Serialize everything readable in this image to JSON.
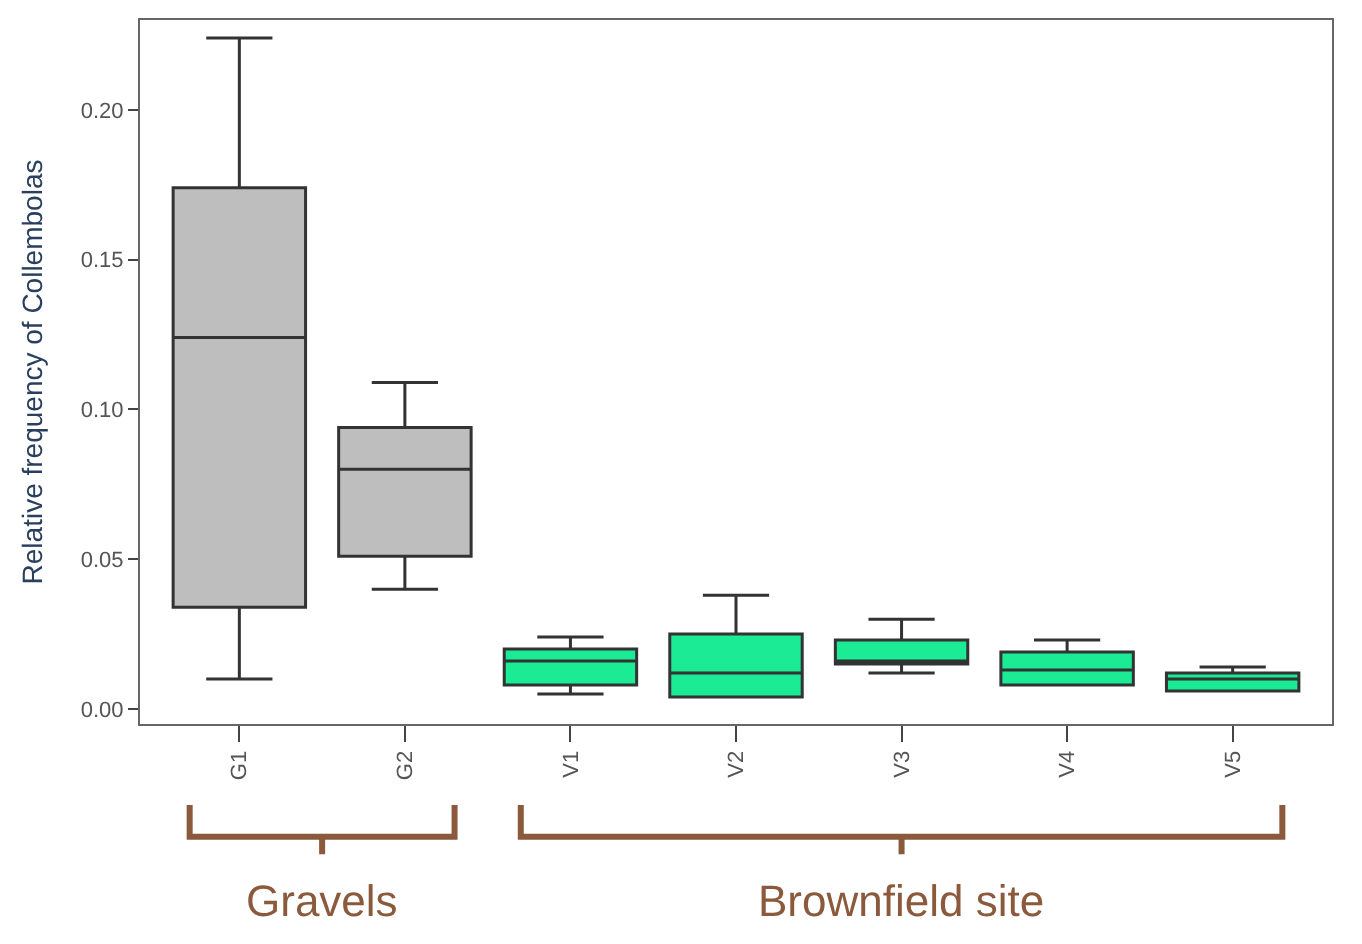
{
  "chart_data": {
    "type": "box",
    "ylabel": "Relative frequency of Collembolas",
    "categories": [
      "G1",
      "G2",
      "V1",
      "V2",
      "V3",
      "V4",
      "V5"
    ],
    "colors": [
      "#bebebe",
      "#bebebe",
      "#1aeb94",
      "#1aeb94",
      "#1aeb94",
      "#1aeb94",
      "#1aeb94"
    ],
    "boxes": [
      {
        "low": 0.01,
        "q1": 0.034,
        "median": 0.124,
        "q3": 0.174,
        "high": 0.224
      },
      {
        "low": 0.04,
        "q1": 0.051,
        "median": 0.08,
        "q3": 0.094,
        "high": 0.109
      },
      {
        "low": 0.005,
        "q1": 0.008,
        "median": 0.016,
        "q3": 0.02,
        "high": 0.024
      },
      {
        "low": 0.004,
        "q1": 0.004,
        "median": 0.012,
        "q3": 0.025,
        "high": 0.038
      },
      {
        "low": 0.012,
        "q1": 0.015,
        "median": 0.016,
        "q3": 0.023,
        "high": 0.03
      },
      {
        "low": 0.008,
        "q1": 0.008,
        "median": 0.013,
        "q3": 0.019,
        "high": 0.023
      },
      {
        "low": 0.006,
        "q1": 0.006,
        "median": 0.01,
        "q3": 0.012,
        "high": 0.014
      }
    ],
    "ylim": [
      -0.005,
      0.23
    ],
    "yticks": [
      {
        "value": 0,
        "label": "0.00"
      },
      {
        "value": 0.05,
        "label": "0.05"
      },
      {
        "value": 0.1,
        "label": "0.10"
      },
      {
        "value": 0.15,
        "label": "0.15"
      },
      {
        "value": 0.2,
        "label": "0.20"
      }
    ],
    "legend": false,
    "annotations": [
      "Gravels",
      "Brownfield site"
    ]
  }
}
